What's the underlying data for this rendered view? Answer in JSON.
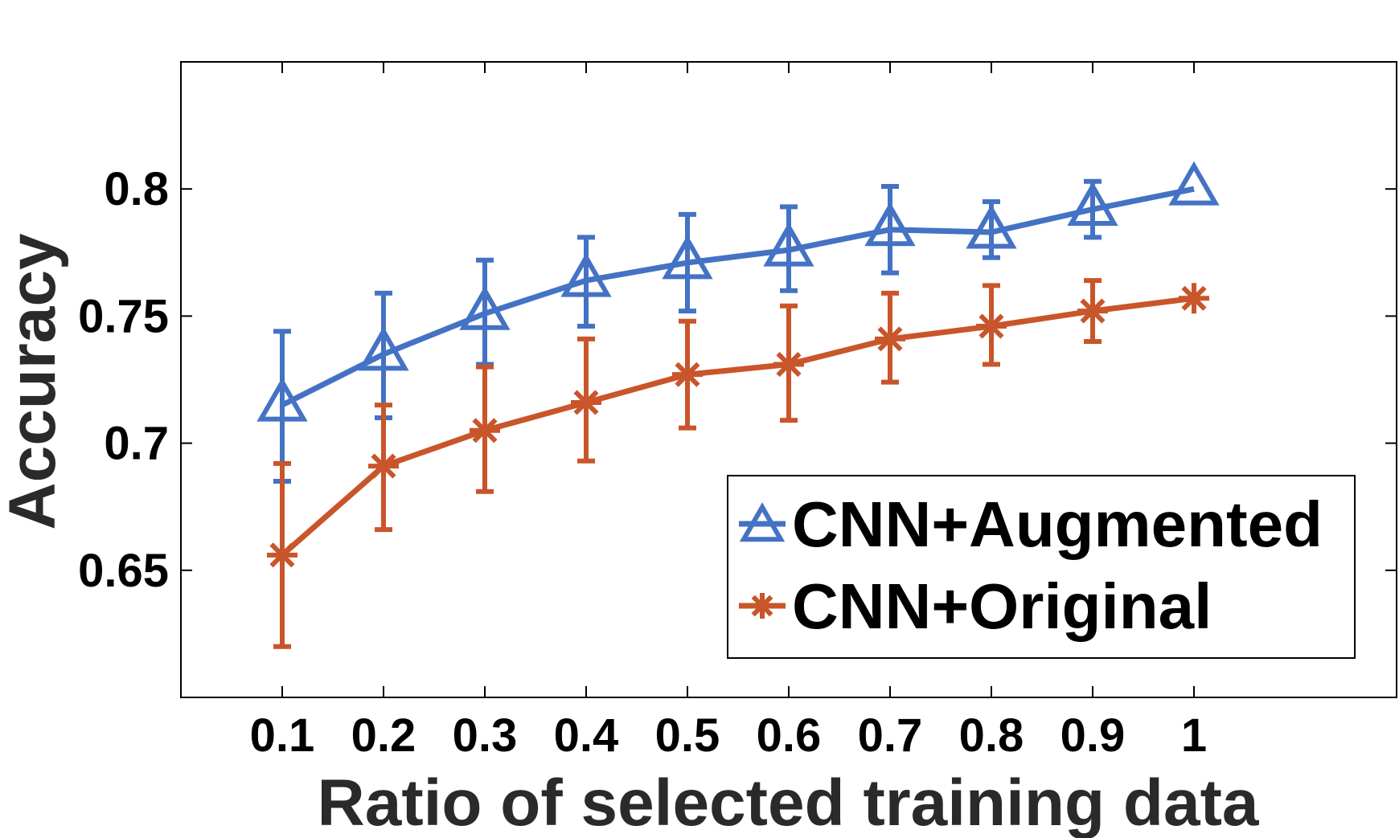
{
  "chart_data": {
    "type": "line",
    "xlabel": "Ratio of selected training data",
    "ylabel": "Accuracy",
    "x": [
      0.1,
      0.2,
      0.3,
      0.4,
      0.5,
      0.6,
      0.7,
      0.8,
      0.9,
      1.0
    ],
    "x_tick_labels": [
      "0.1",
      "0.2",
      "0.3",
      "0.4",
      "0.5",
      "0.6",
      "0.7",
      "0.8",
      "0.9",
      "1"
    ],
    "y_ticks": [
      0.65,
      0.7,
      0.75,
      0.8
    ],
    "y_tick_labels": [
      "0.65",
      "0.7",
      "0.75",
      "0.8"
    ],
    "xlim": [
      0.0,
      1.2
    ],
    "ylim": [
      0.6,
      0.85
    ],
    "grid": false,
    "legend_position": "bottom-right",
    "series": [
      {
        "name": "CNN+Augmented",
        "marker": "triangle",
        "color": "#4472C4",
        "values": [
          0.715,
          0.735,
          0.751,
          0.764,
          0.771,
          0.776,
          0.784,
          0.783,
          0.792,
          0.8
        ],
        "error_low": [
          0.685,
          0.71,
          0.731,
          0.746,
          0.752,
          0.76,
          0.767,
          0.773,
          0.781,
          0.8
        ],
        "error_high": [
          0.744,
          0.759,
          0.772,
          0.781,
          0.79,
          0.793,
          0.801,
          0.795,
          0.803,
          0.8
        ]
      },
      {
        "name": "CNN+Original",
        "marker": "asterisk",
        "color": "#C9552B",
        "values": [
          0.656,
          0.691,
          0.705,
          0.716,
          0.727,
          0.731,
          0.741,
          0.746,
          0.752,
          0.757
        ],
        "error_low": [
          0.62,
          0.666,
          0.681,
          0.693,
          0.706,
          0.709,
          0.724,
          0.731,
          0.74,
          0.757
        ],
        "error_high": [
          0.692,
          0.715,
          0.73,
          0.741,
          0.748,
          0.754,
          0.759,
          0.762,
          0.764,
          0.757
        ]
      }
    ]
  }
}
